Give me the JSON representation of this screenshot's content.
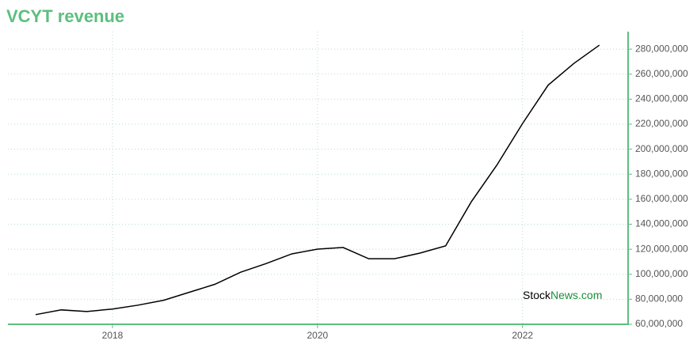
{
  "chart_data": {
    "type": "line",
    "title": "VCYT revenue",
    "watermark": [
      "Stock",
      "News.com"
    ],
    "x": [
      2017.25,
      2017.5,
      2017.75,
      2018,
      2018.25,
      2018.5,
      2018.75,
      2019,
      2019.25,
      2019.5,
      2019.75,
      2020,
      2020.25,
      2020.5,
      2020.75,
      2021,
      2021.25,
      2021.5,
      2021.75,
      2022,
      2022.25,
      2022.5,
      2022.75
    ],
    "series": [
      {
        "name": "VCYT revenue",
        "color": "#000000",
        "values": [
          67700000,
          71500000,
          70200000,
          72200000,
          75300000,
          79200000,
          85600000,
          92000000,
          101600000,
          108600000,
          116300000,
          120100000,
          121400000,
          112400000,
          112400000,
          116900000,
          122700000,
          157900000,
          187300000,
          220500000,
          251200000,
          268500000,
          283200000
        ]
      }
    ],
    "xlim": [
      2016.98,
      2023.03
    ],
    "xticks": [
      2018,
      2020,
      2022
    ],
    "ylim": [
      60000000,
      294000000
    ],
    "yticks": [
      {
        "value": 60000000,
        "label": "60,000,000"
      },
      {
        "value": 80000000,
        "label": "80,000,000"
      },
      {
        "value": 100000000,
        "label": "100,000,000"
      },
      {
        "value": 120000000,
        "label": "120,000,000"
      },
      {
        "value": 140000000,
        "label": "140,000,000"
      },
      {
        "value": 160000000,
        "label": "160,000,000"
      },
      {
        "value": 180000000,
        "label": "180,000,000"
      },
      {
        "value": 200000000,
        "label": "200,000,000"
      },
      {
        "value": 220000000,
        "label": "220,000,000"
      },
      {
        "value": 240000000,
        "label": "240,000,000"
      },
      {
        "value": 260000000,
        "label": "260,000,000"
      },
      {
        "value": 280000000,
        "label": "280,000,000"
      }
    ],
    "grid": true,
    "axis_color": "#5cbf7f"
  }
}
